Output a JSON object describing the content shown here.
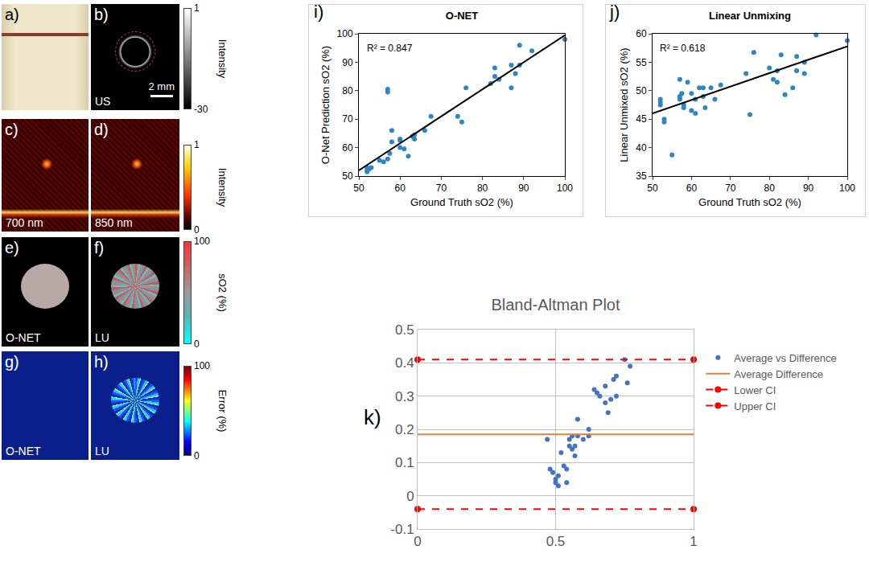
{
  "images": {
    "panels": [
      {
        "label": "a)"
      },
      {
        "label": "b)",
        "text": "US",
        "scale_bar": "2 mm"
      },
      {
        "label": "c)",
        "text": "700 nm"
      },
      {
        "label": "d)",
        "text": "850 nm"
      },
      {
        "label": "e)",
        "text": "O-NET"
      },
      {
        "label": "f)",
        "text": "LU"
      },
      {
        "label": "g)",
        "text": "O-NET"
      },
      {
        "label": "h)",
        "text": "LU"
      }
    ],
    "colorbars": [
      {
        "title": "Intensity",
        "ticks": [
          1,
          -30
        ]
      },
      {
        "title": "Intensity",
        "ticks": [
          1,
          0
        ]
      },
      {
        "title": "sO2 (%)",
        "ticks": [
          100,
          0
        ]
      },
      {
        "title": "Error (%)",
        "ticks": [
          100,
          0
        ]
      }
    ]
  },
  "chart_data": [
    {
      "type": "scatter",
      "title": "O-NET",
      "x_label": "Ground Truth sO2 (%)",
      "y_label": "O-Net Prediction sO2 (%)",
      "xlim": [
        50,
        100
      ],
      "xticks": [
        50,
        60,
        70,
        80,
        90,
        100
      ],
      "ylim": [
        50,
        100
      ],
      "yticks": [
        50,
        60,
        70,
        80,
        90,
        100
      ],
      "grid": false,
      "annotations": [
        {
          "text": "i)"
        },
        {
          "text": "R² = 0.847"
        }
      ],
      "series": [
        {
          "type": "scatter",
          "color": "#2e86c1",
          "x": [
            52,
            52,
            52.5,
            53,
            52,
            55,
            57,
            57,
            57.5,
            58,
            58,
            60,
            60,
            60,
            61,
            62,
            63,
            63.5,
            63.5,
            66,
            67.5,
            57,
            56,
            74,
            75,
            76,
            82,
            83,
            83,
            84,
            87,
            87,
            88,
            89,
            89,
            92,
            100
          ],
          "values": [
            52,
            53,
            52.5,
            53,
            51.5,
            55.5,
            80.5,
            79.5,
            58,
            62,
            66,
            63,
            62.5,
            60,
            59.5,
            57,
            64,
            63,
            64.5,
            66,
            71,
            56,
            55,
            71,
            69,
            81,
            82.5,
            85,
            88,
            84,
            81,
            89,
            86,
            96,
            89,
            94,
            98
          ]
        },
        {
          "type": "line",
          "color": "#000000",
          "line_style": "solid",
          "x": [
            50,
            100
          ],
          "values": [
            52,
            99.5
          ]
        }
      ]
    },
    {
      "type": "scatter",
      "title": "Linear Unmixing",
      "x_label": "Ground Truth sO2 (%)",
      "y_label": "Linear Unmixed sO2 (%)",
      "xlim": [
        50,
        100
      ],
      "xticks": [
        50,
        60,
        70,
        80,
        90,
        100
      ],
      "ylim": [
        35,
        60
      ],
      "yticks": [
        35,
        40,
        45,
        50,
        55,
        60
      ],
      "grid": false,
      "annotations": [
        {
          "text": "j)"
        },
        {
          "text": "R² = 0.618"
        }
      ],
      "series": [
        {
          "type": "scatter",
          "color": "#2e86c1",
          "x": [
            52,
            52,
            52,
            53,
            53,
            55,
            57,
            57,
            57,
            57.5,
            58,
            58,
            59,
            60,
            60,
            61,
            61,
            62,
            63,
            63,
            63.5,
            65,
            66,
            67.5,
            74,
            75,
            76,
            80,
            81,
            82,
            82,
            83,
            84,
            86,
            87,
            87,
            89,
            89,
            92,
            100
          ],
          "values": [
            48.5,
            48,
            47.5,
            45,
            44.5,
            38.7,
            49,
            48.5,
            52,
            49.5,
            47.5,
            47,
            51.5,
            49.5,
            46.5,
            46,
            48.5,
            50.5,
            50.5,
            49,
            47,
            50.5,
            48.5,
            51,
            53,
            45.8,
            56.7,
            54,
            52,
            51.5,
            53.5,
            56.3,
            49.3,
            50.5,
            53.5,
            56,
            55,
            53,
            59.8,
            58.8
          ]
        },
        {
          "type": "line",
          "color": "#000000",
          "line_style": "solid",
          "x": [
            50,
            100
          ],
          "values": [
            46,
            57.8
          ]
        }
      ]
    },
    {
      "type": "scatter",
      "title": "Bland-Altman Plot",
      "xlim": [
        0,
        1
      ],
      "xticks": [
        0,
        0.5,
        1
      ],
      "ylim": [
        -0.1,
        0.5
      ],
      "yticks": [
        -0.1,
        0,
        0.1,
        0.2,
        0.3,
        0.4,
        0.5
      ],
      "grid": true,
      "legend": "right",
      "annotations": [
        {
          "text": "k)"
        }
      ],
      "series": [
        {
          "name": "Average vs Difference",
          "type": "scatter",
          "color": "#4472c4",
          "marker": "circle",
          "x": [
            0.47,
            0.48,
            0.49,
            0.5,
            0.5,
            0.51,
            0.51,
            0.52,
            0.53,
            0.54,
            0.54,
            0.55,
            0.55,
            0.56,
            0.56,
            0.57,
            0.57,
            0.58,
            0.58,
            0.6,
            0.62,
            0.62,
            0.64,
            0.65,
            0.66,
            0.68,
            0.68,
            0.69,
            0.7,
            0.71,
            0.72,
            0.72,
            0.75,
            0.76,
            0.77
          ],
          "values": [
            0.17,
            0.08,
            0.07,
            0.05,
            0.04,
            0.03,
            0.06,
            0.13,
            0.09,
            0.04,
            0.08,
            0.15,
            0.17,
            0.14,
            0.18,
            0.12,
            0.15,
            0.23,
            0.18,
            0.17,
            0.2,
            0.18,
            0.32,
            0.31,
            0.3,
            0.28,
            0.33,
            0.25,
            0.29,
            0.35,
            0.36,
            0.3,
            0.41,
            0.34,
            0.39
          ]
        },
        {
          "name": "Average Difference",
          "type": "line",
          "color": "#ed7d31",
          "line_style": "solid",
          "x": [
            0,
            1
          ],
          "values": [
            0.185,
            0.185
          ]
        },
        {
          "name": "Lower CI",
          "type": "line",
          "color": "#ff0000",
          "line_style": "dash",
          "marker": "circle",
          "x": [
            0,
            1
          ],
          "values": [
            -0.04,
            -0.04
          ]
        },
        {
          "name": "Upper CI",
          "type": "line",
          "color": "#ff0000",
          "line_style": "dash",
          "marker": "circle",
          "x": [
            0,
            1
          ],
          "values": [
            0.41,
            0.41
          ]
        }
      ]
    }
  ]
}
